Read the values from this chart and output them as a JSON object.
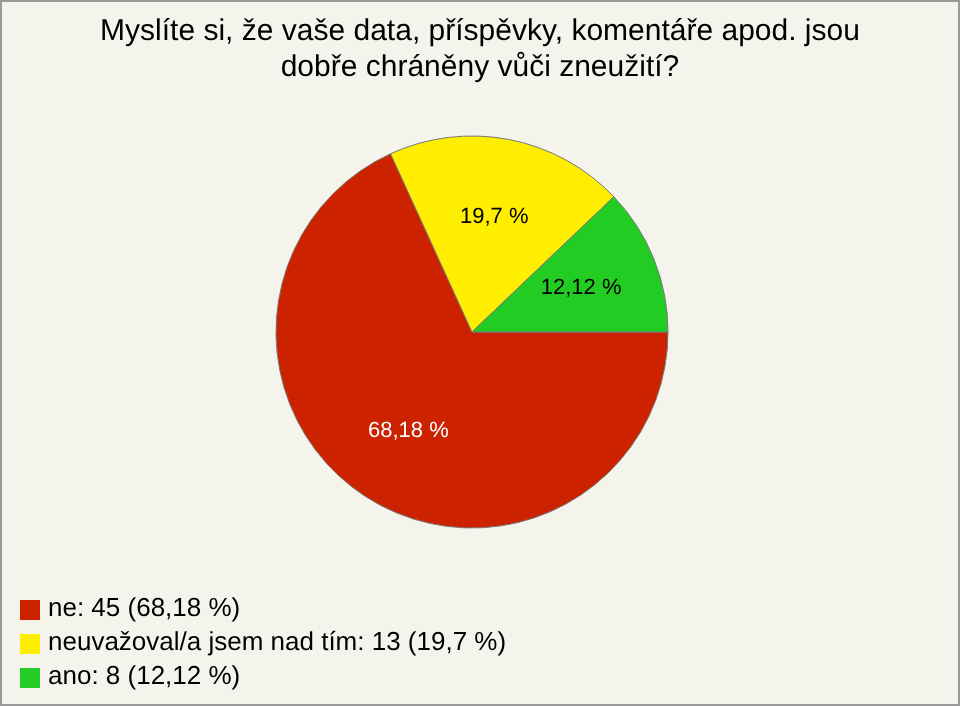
{
  "chart_data": {
    "type": "pie",
    "title": "Myslíte si, že vaše data, příspěvky, komentáře apod. jsou dobře chráněny vůči zneužití?",
    "categories": [
      "ne: 45 (68,18 %)",
      "neuvažoval/a jsem nad tím: 13 (19,7 %)",
      "ano: 8 (12,12 %)"
    ],
    "values": [
      68.18,
      19.7,
      12.12
    ],
    "colors": [
      "#cc2200",
      "#ffee00",
      "#22cc22"
    ],
    "value_labels": [
      "68,18 %",
      "19,7 %",
      "12,12 %"
    ],
    "legend": "bottom left"
  }
}
